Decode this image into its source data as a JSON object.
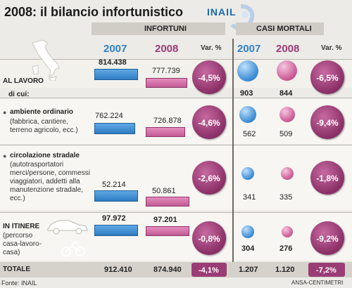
{
  "title": "2008: il bilancio infortunistico",
  "logo_text": "INAIL",
  "headers": {
    "infortuni": "INFORTUNI",
    "casi_mortali": "CASI MORTALI",
    "year_a": "2007",
    "year_b": "2008",
    "var_label": "Var. %"
  },
  "colors": {
    "series_2007": "#2f80c7",
    "series_2008": "#c25b95",
    "badge": "#9a3c75"
  },
  "rows": [
    {
      "key": "al_lavoro",
      "label": "AL LAVORO",
      "sub": "",
      "infortuni_2007": "814.438",
      "infortuni_2008": "777.739",
      "infortuni_var": "-4,5%",
      "mortali_2007": "903",
      "mortali_2008": "844",
      "mortali_var": "-6,5%"
    },
    {
      "key": "ambiente_ordinario",
      "label": "ambiente ordinario",
      "sub": "(fabbrica, cantiere, terreno agricolo, ecc.)",
      "infortuni_2007": "762.224",
      "infortuni_2008": "726.878",
      "infortuni_var": "-4,6%",
      "mortali_2007": "562",
      "mortali_2008": "509",
      "mortali_var": "-9,4%"
    },
    {
      "key": "circolazione_stradale",
      "label": "circolazione stradale",
      "sub": "(autotrasportatori merci/persone, commessi viaggiatori, addetti alla manutenzione stradale, ecc.)",
      "infortuni_2007": "52.214",
      "infortuni_2008": "50.861",
      "infortuni_var": "-2,6%",
      "mortali_2007": "341",
      "mortali_2008": "335",
      "mortali_var": "-1,8%"
    },
    {
      "key": "in_itinere",
      "label": "IN ITINERE",
      "sub": "(percorso casa-lavoro-casa)",
      "infortuni_2007": "97.972",
      "infortuni_2008": "97.201",
      "infortuni_var": "-0,8%",
      "mortali_2007": "304",
      "mortali_2008": "276",
      "mortali_var": "-9,2%"
    }
  ],
  "di_cui": "di cui:",
  "total": {
    "label": "TOTALE",
    "infortuni_2007": "912.410",
    "infortuni_2008": "874.940",
    "infortuni_var": "-4,1%",
    "mortali_2007": "1.207",
    "mortali_2008": "1.120",
    "mortali_var": "-7,2%"
  },
  "footer": {
    "source": "Fonte: INAIL",
    "credit": "ANSA-CENTIMETRI"
  },
  "chart_data": {
    "type": "table",
    "title": "2008: il bilancio infortunistico",
    "categories": [
      "AL LAVORO",
      "ambiente ordinario",
      "circolazione stradale",
      "IN ITINERE",
      "TOTALE"
    ],
    "series": [
      {
        "name": "INFORTUNI 2007",
        "values": [
          814438,
          762224,
          52214,
          97972,
          912410
        ]
      },
      {
        "name": "INFORTUNI 2008",
        "values": [
          777739,
          726878,
          50861,
          97201,
          874940
        ]
      },
      {
        "name": "INFORTUNI Var. %",
        "values": [
          -4.5,
          -4.6,
          -2.6,
          -0.8,
          -4.1
        ]
      },
      {
        "name": "CASI MORTALI 2007",
        "values": [
          903,
          562,
          341,
          304,
          1207
        ]
      },
      {
        "name": "CASI MORTALI 2008",
        "values": [
          844,
          509,
          335,
          276,
          1120
        ]
      },
      {
        "name": "CASI MORTALI Var. %",
        "values": [
          -6.5,
          -9.4,
          -1.8,
          -9.2,
          -7.2
        ]
      }
    ]
  }
}
